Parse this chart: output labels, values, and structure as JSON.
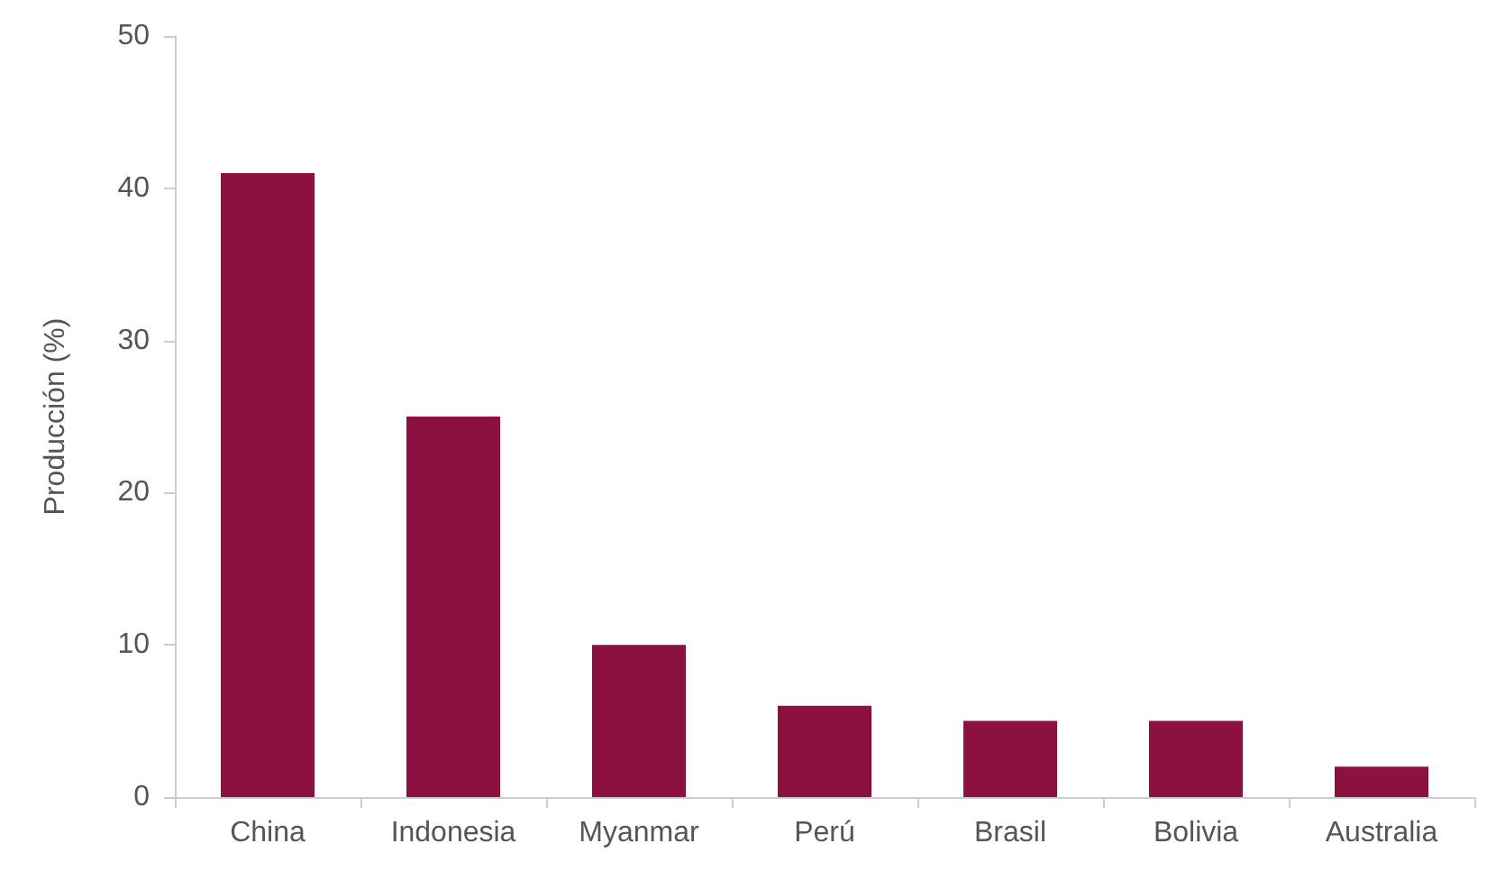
{
  "chart_data": {
    "type": "bar",
    "ylabel": "Producción (%)",
    "categories": [
      "China",
      "Indonesia",
      "Myanmar",
      "Perú",
      "Brasil",
      "Bolivia",
      "Australia"
    ],
    "values": [
      41,
      25,
      10,
      6,
      5,
      5,
      2
    ],
    "color": "#8b1140",
    "ylim": [
      0,
      50
    ],
    "yticks": [
      0,
      10,
      20,
      30,
      40,
      50
    ],
    "grid": false
  }
}
